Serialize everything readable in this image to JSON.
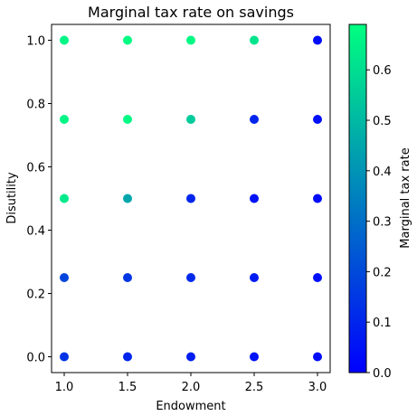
{
  "chart_data": {
    "type": "scatter",
    "title": "Marginal tax rate on savings",
    "xlabel": "Endowment",
    "ylabel": "Disutility",
    "xlim": [
      0.9,
      3.1
    ],
    "ylim": [
      -0.05,
      1.05
    ],
    "xticks": [
      1.0,
      1.5,
      2.0,
      2.5,
      3.0
    ],
    "xtick_labels": [
      "1.0",
      "1.5",
      "2.0",
      "2.5",
      "3.0"
    ],
    "yticks": [
      0.0,
      0.2,
      0.4,
      0.6,
      0.8,
      1.0
    ],
    "ytick_labels": [
      "0.0",
      "0.2",
      "0.4",
      "0.6",
      "0.8",
      "1.0"
    ],
    "colorbar": {
      "label": "Marginal tax rate",
      "colormap": "winter",
      "min": 0.0,
      "max": 0.69,
      "ticks": [
        0.0,
        0.1,
        0.2,
        0.3,
        0.4,
        0.5,
        0.6
      ],
      "tick_labels": [
        "0.0",
        "0.1",
        "0.2",
        "0.3",
        "0.4",
        "0.5",
        "0.6"
      ],
      "color_low": "#0000ff",
      "color_high": "#00ff80"
    },
    "points": [
      {
        "x": 1.0,
        "y": 0.0,
        "value": 0.14
      },
      {
        "x": 1.5,
        "y": 0.0,
        "value": 0.1
      },
      {
        "x": 2.0,
        "y": 0.0,
        "value": 0.08
      },
      {
        "x": 2.5,
        "y": 0.0,
        "value": 0.05
      },
      {
        "x": 3.0,
        "y": 0.0,
        "value": 0.03
      },
      {
        "x": 1.0,
        "y": 0.25,
        "value": 0.19
      },
      {
        "x": 1.5,
        "y": 0.25,
        "value": 0.15
      },
      {
        "x": 2.0,
        "y": 0.25,
        "value": 0.11
      },
      {
        "x": 2.5,
        "y": 0.25,
        "value": 0.07
      },
      {
        "x": 3.0,
        "y": 0.25,
        "value": 0.04
      },
      {
        "x": 1.0,
        "y": 0.5,
        "value": 0.63
      },
      {
        "x": 1.5,
        "y": 0.5,
        "value": 0.45
      },
      {
        "x": 2.0,
        "y": 0.5,
        "value": 0.1
      },
      {
        "x": 2.5,
        "y": 0.5,
        "value": 0.05
      },
      {
        "x": 3.0,
        "y": 0.5,
        "value": 0.03
      },
      {
        "x": 1.0,
        "y": 0.75,
        "value": 0.66
      },
      {
        "x": 1.5,
        "y": 0.75,
        "value": 0.67
      },
      {
        "x": 2.0,
        "y": 0.75,
        "value": 0.55
      },
      {
        "x": 2.5,
        "y": 0.75,
        "value": 0.1
      },
      {
        "x": 3.0,
        "y": 0.75,
        "value": 0.04
      },
      {
        "x": 1.0,
        "y": 1.0,
        "value": 0.66
      },
      {
        "x": 1.5,
        "y": 1.0,
        "value": 0.68
      },
      {
        "x": 2.0,
        "y": 1.0,
        "value": 0.67
      },
      {
        "x": 2.5,
        "y": 1.0,
        "value": 0.62
      },
      {
        "x": 3.0,
        "y": 1.0,
        "value": 0.03
      }
    ]
  }
}
